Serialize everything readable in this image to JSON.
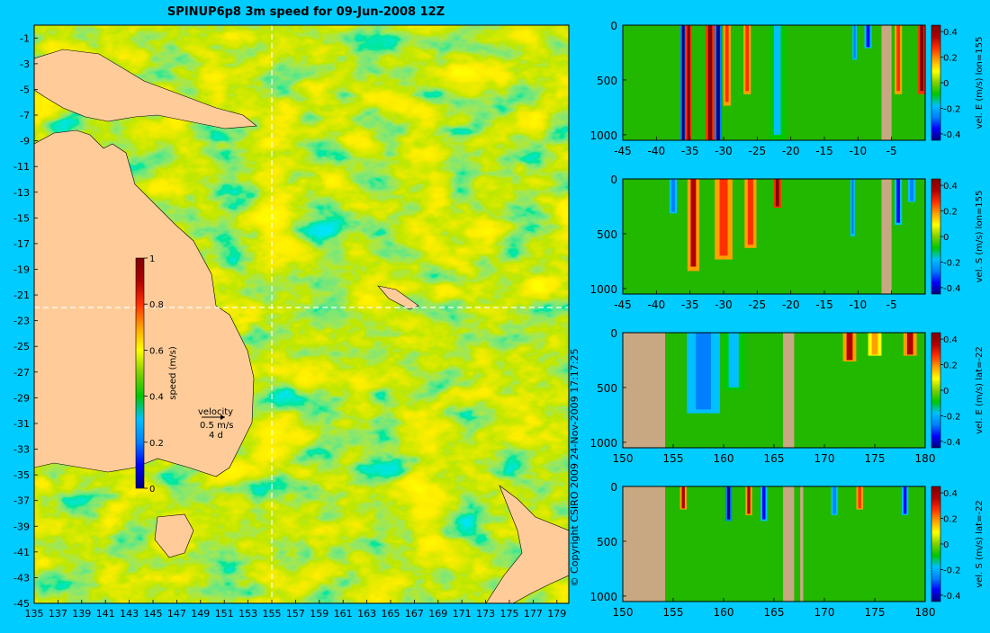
{
  "title": "SPINUP6p8 3m speed for 09-Jun-2008 12Z",
  "copyright": "© Copyright CSIRO 2009   24-Nov-2009 17:17:25",
  "colors": {
    "background": "#00ccff",
    "land": "#ffcc99",
    "land_section": "#c8a882",
    "guide": "#ffffff",
    "colormap": [
      "#000080",
      "#0000ff",
      "#0080ff",
      "#00c0ff",
      "#00c800",
      "#80d000",
      "#ffff00",
      "#ffa000",
      "#ff3000",
      "#b00000",
      "#800000"
    ]
  },
  "map": {
    "xlabels": [
      "135",
      "137",
      "139",
      "141",
      "143",
      "145",
      "147",
      "149",
      "151",
      "153",
      "155",
      "157",
      "159",
      "161",
      "163",
      "165",
      "167",
      "169",
      "171",
      "173",
      "175",
      "177",
      "179"
    ],
    "ylabels": [
      "-1",
      "-3",
      "-5",
      "-7",
      "-9",
      "-11",
      "-13",
      "-15",
      "-17",
      "-19",
      "-21",
      "-23",
      "-25",
      "-27",
      "-29",
      "-31",
      "-33",
      "-35",
      "-37",
      "-39",
      "-41",
      "-43",
      "-45"
    ],
    "guide_lon": 155,
    "guide_lat": -22,
    "colorbar": {
      "label": "speed (m/s)",
      "ticks": [
        "0",
        "0.2",
        "0.4",
        "0.6",
        "0.8",
        "1"
      ]
    },
    "velocity_key": {
      "title": "velocity",
      "speed": "0.5 m/s",
      "duration": "4 d"
    },
    "features": [
      "land",
      "speed field",
      "eddies",
      "velocity vectors"
    ]
  },
  "chart_data": [
    {
      "type": "heatmap",
      "title": "vel. E (m/s) lon=155",
      "xlabel": "",
      "ylabel": "",
      "x_ticks": [
        "-45",
        "-40",
        "-35",
        "-30",
        "-25",
        "-20",
        "-15",
        "-10",
        "-5"
      ],
      "y_ticks": [
        "0",
        "500",
        "1000"
      ],
      "xlim": [
        -45,
        0
      ],
      "ylim": [
        1050,
        0
      ],
      "colorbar_ticks": [
        "-0.4",
        "-0.2",
        "0",
        "0.2",
        "0.4"
      ],
      "land_x": [
        [
          -6.5,
          -5
        ]
      ],
      "bands": [
        {
          "x": -36.0,
          "v": -0.45,
          "w": 0.4,
          "d": 1050
        },
        {
          "x": -35.2,
          "v": 0.45,
          "w": 0.4,
          "d": 1050
        },
        {
          "x": -32.0,
          "v": 0.45,
          "w": 0.6,
          "d": 1050
        },
        {
          "x": -30.8,
          "v": -0.45,
          "w": 0.5,
          "d": 1050
        },
        {
          "x": -29.5,
          "v": 0.3,
          "w": 0.5,
          "d": 700
        },
        {
          "x": -26.5,
          "v": 0.3,
          "w": 0.5,
          "d": 600
        },
        {
          "x": -22.0,
          "v": -0.2,
          "w": 1.0,
          "d": 1000
        },
        {
          "x": -10.5,
          "v": -0.3,
          "w": 0.3,
          "d": 300
        },
        {
          "x": -8.5,
          "v": -0.4,
          "w": 0.5,
          "d": 200
        },
        {
          "x": -4.0,
          "v": 0.3,
          "w": 0.5,
          "d": 600
        },
        {
          "x": -0.5,
          "v": 0.45,
          "w": 0.5,
          "d": 600
        }
      ]
    },
    {
      "type": "heatmap",
      "title": "vel. S (m/s) lon=155",
      "xlabel": "",
      "ylabel": "",
      "x_ticks": [
        "-45",
        "-40",
        "-35",
        "-30",
        "-25",
        "-20",
        "-15",
        "-10",
        "-5"
      ],
      "y_ticks": [
        "0",
        "500",
        "1000"
      ],
      "xlim": [
        -45,
        0
      ],
      "ylim": [
        1050,
        0
      ],
      "colorbar_ticks": [
        "-0.4",
        "-0.2",
        "0",
        "0.2",
        "0.4"
      ],
      "land_x": [
        [
          -6.5,
          -5
        ]
      ],
      "bands": [
        {
          "x": -37.5,
          "v": -0.3,
          "w": 0.5,
          "d": 300
        },
        {
          "x": -34.5,
          "v": 0.35,
          "w": 0.8,
          "d": 800
        },
        {
          "x": -30.0,
          "v": 0.3,
          "w": 1.2,
          "d": 700
        },
        {
          "x": -26.0,
          "v": 0.3,
          "w": 0.8,
          "d": 600
        },
        {
          "x": -22.0,
          "v": 0.45,
          "w": 0.5,
          "d": 250
        },
        {
          "x": -10.8,
          "v": -0.3,
          "w": 0.3,
          "d": 500
        },
        {
          "x": -4.0,
          "v": -0.4,
          "w": 0.5,
          "d": 400
        },
        {
          "x": -2.0,
          "v": -0.3,
          "w": 0.5,
          "d": 200
        }
      ]
    },
    {
      "type": "heatmap",
      "title": "vel. E (m/s) lat=-22",
      "xlabel": "",
      "ylabel": "",
      "x_ticks": [
        "150",
        "155",
        "160",
        "165",
        "170",
        "175",
        "180"
      ],
      "y_ticks": [
        "0",
        "500",
        "1000"
      ],
      "xlim": [
        150,
        180
      ],
      "ylim": [
        1050,
        0
      ],
      "colorbar_ticks": [
        "-0.4",
        "-0.2",
        "0",
        "0.2",
        "0.4"
      ],
      "land_x": [
        [
          150,
          154.2
        ],
        [
          165.9,
          167.0
        ]
      ],
      "bands": [
        {
          "x": 158.0,
          "v": -0.3,
          "w": 1.5,
          "d": 700
        },
        {
          "x": 161.0,
          "v": -0.15,
          "w": 1.0,
          "d": 500
        },
        {
          "x": 172.5,
          "v": 0.35,
          "w": 0.6,
          "d": 250
        },
        {
          "x": 175.0,
          "v": 0.2,
          "w": 0.6,
          "d": 200
        },
        {
          "x": 178.5,
          "v": 0.4,
          "w": 0.6,
          "d": 200
        }
      ]
    },
    {
      "type": "heatmap",
      "title": "vel. S (m/s) lat=-22",
      "xlabel": "",
      "ylabel": "",
      "x_ticks": [
        "150",
        "155",
        "160",
        "165",
        "170",
        "175",
        "180"
      ],
      "y_ticks": [
        "0",
        "500",
        "1000"
      ],
      "xlim": [
        150,
        180
      ],
      "ylim": [
        1050,
        0
      ],
      "colorbar_ticks": [
        "-0.4",
        "-0.2",
        "0",
        "0.2",
        "0.4"
      ],
      "land_x": [
        [
          150,
          154.2
        ],
        [
          165.9,
          167.0
        ],
        [
          167.6,
          167.9
        ]
      ],
      "bands": [
        {
          "x": 156.0,
          "v": 0.4,
          "w": 0.3,
          "d": 200
        },
        {
          "x": 160.5,
          "v": -0.45,
          "w": 0.3,
          "d": 300
        },
        {
          "x": 162.5,
          "v": 0.4,
          "w": 0.3,
          "d": 250
        },
        {
          "x": 164.0,
          "v": -0.4,
          "w": 0.3,
          "d": 300
        },
        {
          "x": 171.0,
          "v": -0.3,
          "w": 0.3,
          "d": 250
        },
        {
          "x": 173.5,
          "v": 0.3,
          "w": 0.3,
          "d": 200
        },
        {
          "x": 178.0,
          "v": -0.4,
          "w": 0.3,
          "d": 250
        }
      ]
    }
  ]
}
